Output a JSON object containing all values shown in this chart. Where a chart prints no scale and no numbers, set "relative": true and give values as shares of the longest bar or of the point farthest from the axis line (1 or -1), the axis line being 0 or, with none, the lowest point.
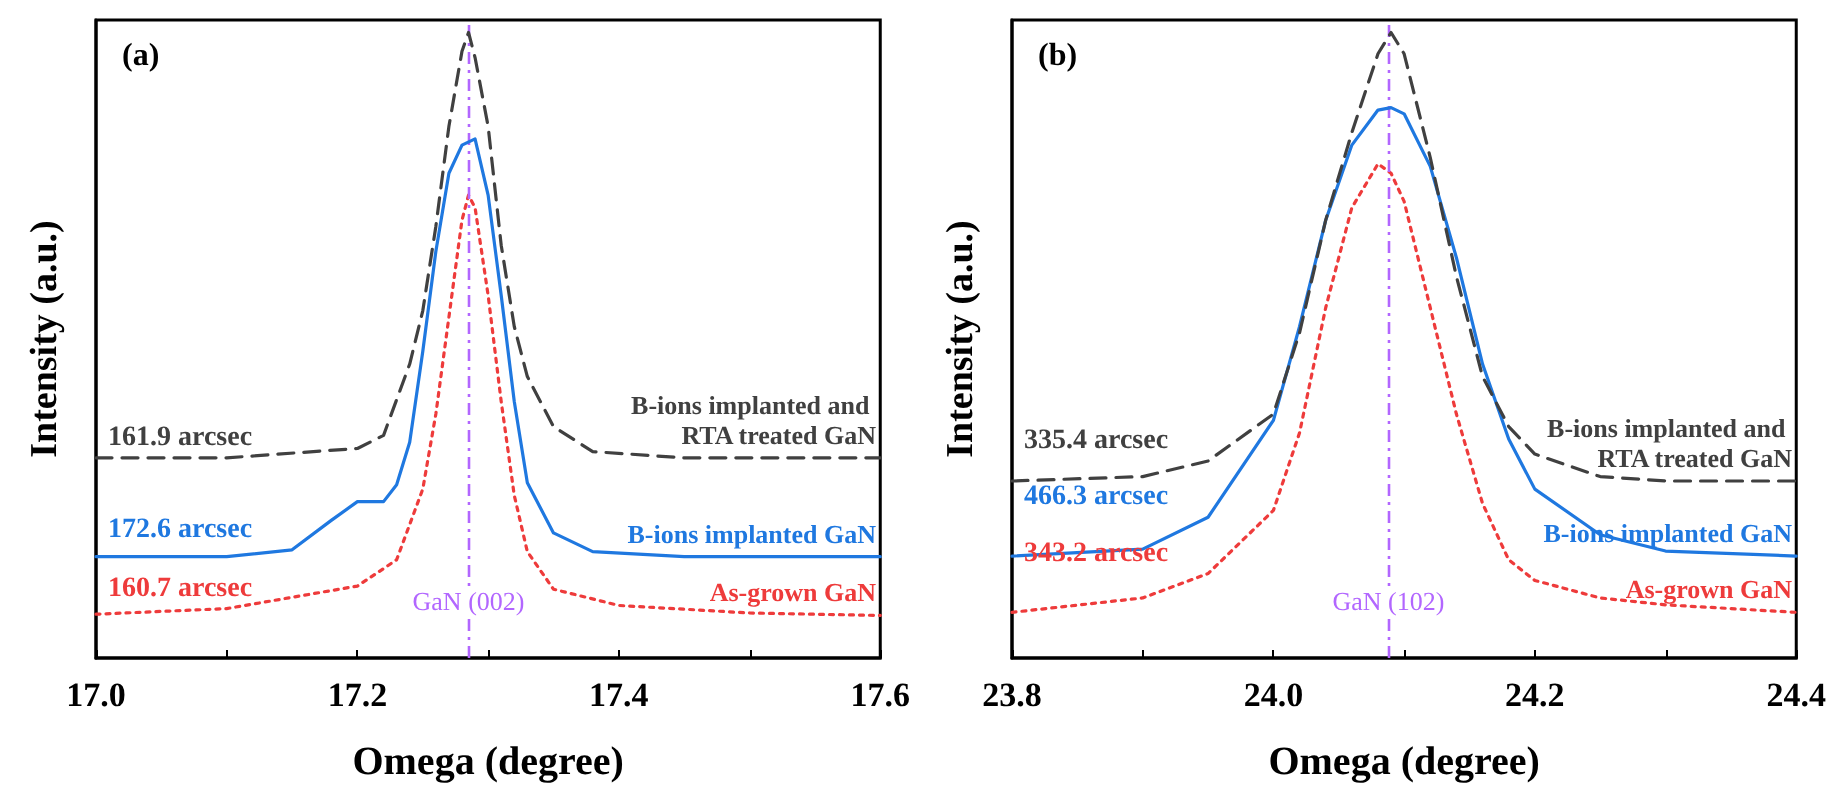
{
  "chart_data": [
    {
      "type": "line",
      "title": "(a)",
      "xlabel": "Omega (degree)",
      "ylabel": "Intensity (a.u.)",
      "relative": true,
      "grid": false,
      "legend": false,
      "marker": "none",
      "xlim": [
        17.0,
        17.6
      ],
      "xticks": [
        {
          "value": 17.0,
          "label": "17.0"
        },
        {
          "value": 17.1,
          "label": null
        },
        {
          "value": 17.2,
          "label": "17.2"
        },
        {
          "value": 17.3,
          "label": null
        },
        {
          "value": 17.4,
          "label": "17.4"
        },
        {
          "value": 17.5,
          "label": null
        },
        {
          "value": 17.6,
          "label": "17.6"
        }
      ],
      "annotations": [
        "161.9 arcsec",
        "172.6 arcsec",
        "160.7 arcsec"
      ],
      "ref_lines": [
        {
          "axis": "x",
          "value": 17.285,
          "label": "GaN (002)",
          "color": "#b266ff",
          "line_style": "dashed"
        }
      ],
      "series": [
        {
          "name": "B-ions implanted and RTA treated GaN",
          "color": "#404040",
          "line_style": "dashed",
          "x": [
            17.0,
            17.1,
            17.2,
            17.22,
            17.24,
            17.25,
            17.26,
            17.27,
            17.28,
            17.285,
            17.29,
            17.3,
            17.31,
            17.32,
            17.33,
            17.35,
            17.38,
            17.45,
            17.6
          ],
          "values": [
            0.32,
            0.32,
            0.335,
            0.356,
            0.47,
            0.555,
            0.69,
            0.85,
            0.97,
            1.0,
            0.96,
            0.85,
            0.66,
            0.53,
            0.45,
            0.37,
            0.33,
            0.32,
            0.32
          ]
        },
        {
          "name": "B-ions implanted GaN",
          "color": "#1f78e0",
          "line_style": "solid",
          "x": [
            17.0,
            17.1,
            17.15,
            17.18,
            17.2,
            17.22,
            17.23,
            17.24,
            17.25,
            17.26,
            17.27,
            17.28,
            17.29,
            17.3,
            17.31,
            17.32,
            17.33,
            17.35,
            17.38,
            17.45,
            17.6
          ],
          "values": [
            0.162,
            0.162,
            0.173,
            0.22,
            0.25,
            0.25,
            0.277,
            0.345,
            0.49,
            0.65,
            0.775,
            0.82,
            0.83,
            0.74,
            0.58,
            0.41,
            0.28,
            0.2,
            0.17,
            0.162,
            0.162
          ]
        },
        {
          "name": "As-grown GaN",
          "color": "#ee3b3b",
          "line_style": "dotted",
          "x": [
            17.0,
            17.1,
            17.2,
            17.23,
            17.25,
            17.26,
            17.27,
            17.28,
            17.285,
            17.29,
            17.3,
            17.31,
            17.32,
            17.33,
            17.35,
            17.4,
            17.5,
            17.6
          ],
          "values": [
            0.07,
            0.079,
            0.115,
            0.157,
            0.27,
            0.39,
            0.545,
            0.7,
            0.74,
            0.72,
            0.58,
            0.41,
            0.26,
            0.17,
            0.11,
            0.084,
            0.072,
            0.068
          ]
        }
      ]
    },
    {
      "type": "line",
      "title": "(b)",
      "xlabel": "Omega (degree)",
      "ylabel": "Intensity (a.u.)",
      "relative": true,
      "grid": false,
      "legend": false,
      "marker": "none",
      "xlim": [
        23.8,
        24.4
      ],
      "xticks": [
        {
          "value": 23.8,
          "label": "23.8"
        },
        {
          "value": 23.9,
          "label": null
        },
        {
          "value": 24.0,
          "label": "24.0"
        },
        {
          "value": 24.1,
          "label": null
        },
        {
          "value": 24.2,
          "label": "24.2"
        },
        {
          "value": 24.3,
          "label": null
        },
        {
          "value": 24.4,
          "label": "24.4"
        }
      ],
      "annotations": [
        "335.4 arcsec",
        "466.3 arcsec",
        "343.2 arcsec"
      ],
      "ref_lines": [
        {
          "axis": "x",
          "value": 24.088,
          "label": "GaN (102)",
          "color": "#b266ff",
          "line_style": "dashed"
        }
      ],
      "series": [
        {
          "name": "B-ions implanted and RTA treated GaN",
          "color": "#404040",
          "line_style": "dashed",
          "x": [
            23.8,
            23.9,
            23.95,
            24.0,
            24.02,
            24.04,
            24.06,
            24.08,
            24.09,
            24.1,
            24.12,
            24.14,
            24.16,
            24.18,
            24.2,
            24.25,
            24.3,
            24.4
          ],
          "values": [
            0.283,
            0.29,
            0.315,
            0.39,
            0.52,
            0.7,
            0.84,
            0.966,
            1.0,
            0.966,
            0.8,
            0.61,
            0.45,
            0.37,
            0.326,
            0.29,
            0.283,
            0.283
          ]
        },
        {
          "name": "B-ions implanted GaN",
          "color": "#1f78e0",
          "line_style": "solid",
          "x": [
            23.8,
            23.9,
            23.95,
            24.0,
            24.02,
            24.04,
            24.06,
            24.08,
            24.09,
            24.1,
            24.12,
            24.14,
            24.16,
            24.18,
            24.2,
            24.25,
            24.3,
            24.4
          ],
          "values": [
            0.163,
            0.174,
            0.225,
            0.38,
            0.53,
            0.7,
            0.82,
            0.876,
            0.88,
            0.87,
            0.786,
            0.64,
            0.47,
            0.35,
            0.27,
            0.197,
            0.171,
            0.163
          ]
        },
        {
          "name": "As-grown GaN",
          "color": "#ee3b3b",
          "line_style": "dotted",
          "x": [
            23.8,
            23.9,
            23.95,
            24.0,
            24.02,
            24.04,
            24.06,
            24.08,
            24.09,
            24.1,
            24.12,
            24.14,
            24.16,
            24.18,
            24.2,
            24.25,
            24.3,
            24.4
          ],
          "values": [
            0.073,
            0.096,
            0.135,
            0.236,
            0.36,
            0.56,
            0.72,
            0.79,
            0.775,
            0.73,
            0.56,
            0.39,
            0.247,
            0.157,
            0.124,
            0.096,
            0.085,
            0.073
          ]
        }
      ]
    }
  ]
}
